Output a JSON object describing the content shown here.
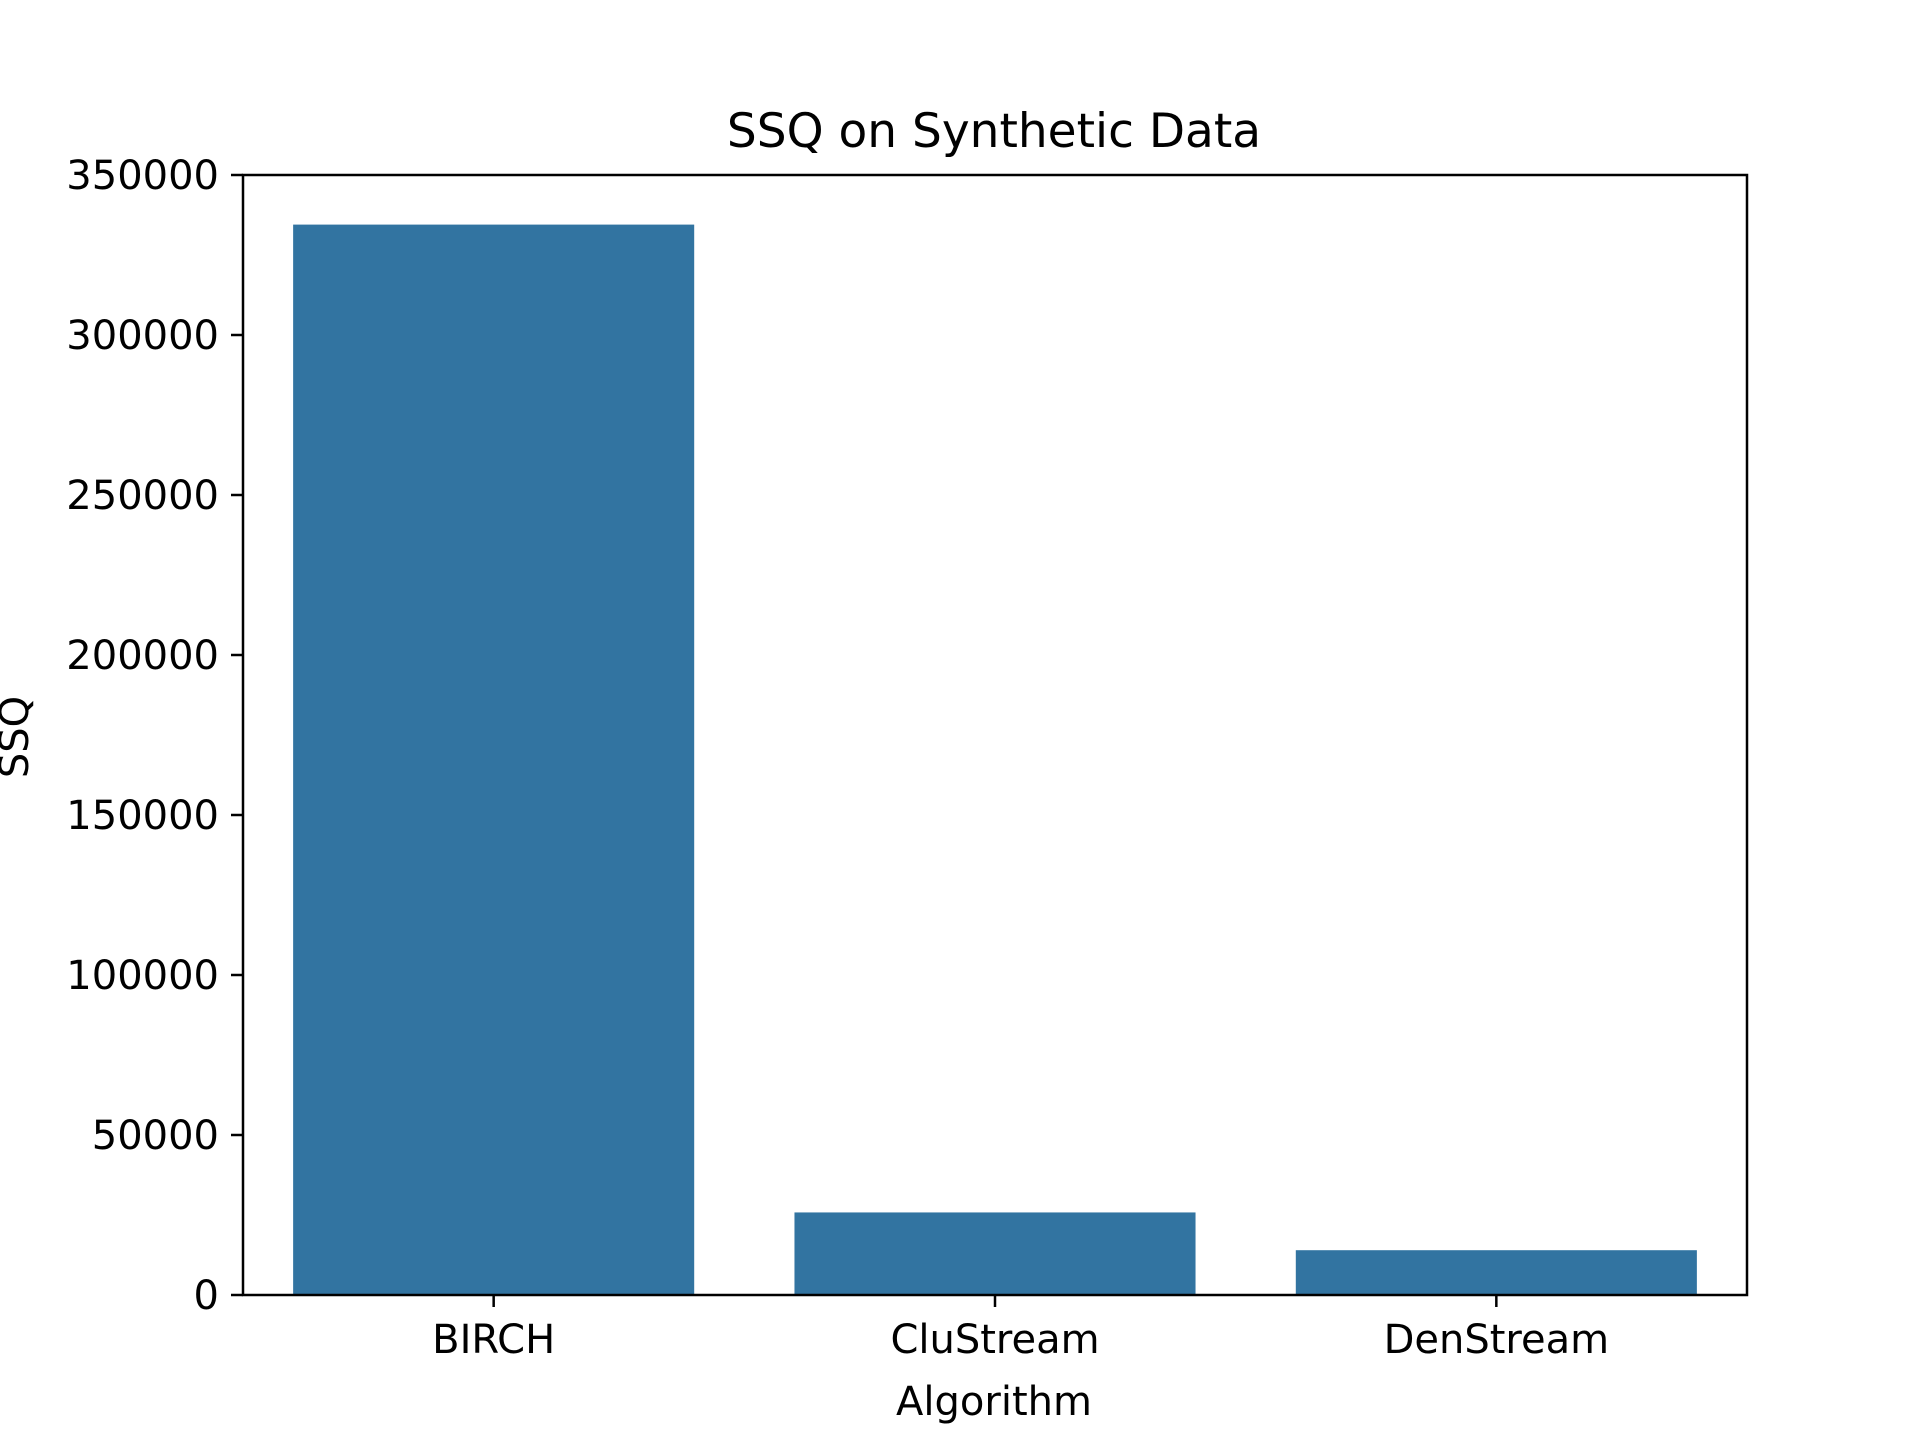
{
  "chart_data": {
    "type": "bar",
    "title": "SSQ on Synthetic Data",
    "xlabel": "Algorithm",
    "ylabel": "SSQ",
    "categories": [
      "BIRCH",
      "CluStream",
      "DenStream"
    ],
    "values": [
      334500,
      25800,
      14000
    ],
    "ylim": [
      0,
      350000
    ],
    "yticks": [
      0,
      50000,
      100000,
      150000,
      200000,
      250000,
      300000,
      350000
    ],
    "ytick_labels": [
      "0",
      "50000",
      "100000",
      "150000",
      "200000",
      "250000",
      "300000",
      "350000"
    ],
    "grid": false,
    "legend": "none",
    "bar_color": "#3274a1"
  }
}
